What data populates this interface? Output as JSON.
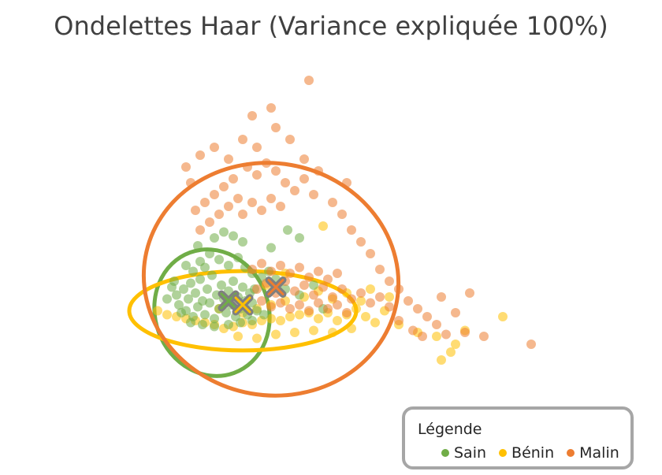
{
  "chart_data": {
    "type": "scatter",
    "title": "Ondelettes Haar (Variance expliquée 100%)",
    "axes_visible": false,
    "grid": false,
    "legend_placement": "bottom-right",
    "legend_title": "Légende",
    "series": [
      {
        "name": "Sain",
        "color": "#70ad47",
        "centroid": {
          "x": 0.0,
          "y": 0.0
        },
        "ellipse": {
          "cx": -0.35,
          "cy": -0.3,
          "rx": 1.2,
          "ry": 1.05,
          "angle": -20
        },
        "points": [
          [
            -1.2,
            0.35
          ],
          [
            -1.1,
            0.15
          ],
          [
            -1.05,
            -0.1
          ],
          [
            -0.95,
            0.3
          ],
          [
            -0.9,
            -0.25
          ],
          [
            -0.85,
            0.05
          ],
          [
            -0.8,
            0.45
          ],
          [
            -0.75,
            -0.4
          ],
          [
            -0.7,
            0.2
          ],
          [
            -0.65,
            -0.15
          ],
          [
            -0.6,
            0.55
          ],
          [
            -0.55,
            0.0
          ],
          [
            -0.5,
            -0.35
          ],
          [
            -0.45,
            0.3
          ],
          [
            -0.4,
            -0.05
          ],
          [
            -0.35,
            0.65
          ],
          [
            -0.3,
            -0.45
          ],
          [
            -0.25,
            0.15
          ],
          [
            -0.2,
            -0.2
          ],
          [
            -0.15,
            0.4
          ],
          [
            -0.1,
            0.05
          ],
          [
            -0.05,
            -0.3
          ],
          [
            0.0,
            0.25
          ],
          [
            0.05,
            -0.1
          ],
          [
            0.1,
            0.5
          ],
          [
            0.15,
            -0.4
          ],
          [
            0.2,
            0.1
          ],
          [
            0.25,
            -0.2
          ],
          [
            0.3,
            0.35
          ],
          [
            0.35,
            0.0
          ],
          [
            0.4,
            -0.35
          ],
          [
            0.45,
            0.2
          ],
          [
            0.5,
            -0.05
          ],
          [
            0.55,
            0.3
          ],
          [
            0.6,
            -0.25
          ],
          [
            -0.9,
            0.9
          ],
          [
            -0.6,
            1.0
          ],
          [
            -0.4,
            1.2
          ],
          [
            -0.2,
            1.05
          ],
          [
            0.0,
            0.9
          ],
          [
            0.2,
            1.1
          ],
          [
            0.35,
            0.85
          ],
          [
            -0.75,
            0.75
          ],
          [
            -0.5,
            0.85
          ],
          [
            0.5,
            0.7
          ],
          [
            0.7,
            0.6
          ],
          [
            0.85,
            0.75
          ],
          [
            1.0,
            0.55
          ],
          [
            -0.3,
            1.6
          ],
          [
            -0.1,
            1.75
          ],
          [
            0.1,
            1.65
          ],
          [
            0.3,
            1.5
          ],
          [
            1.25,
            1.8
          ],
          [
            1.5,
            1.6
          ],
          [
            0.9,
            1.35
          ],
          [
            -1.0,
            -0.3
          ],
          [
            -0.8,
            -0.55
          ],
          [
            -0.55,
            -0.6
          ],
          [
            -0.3,
            -0.65
          ],
          [
            0.0,
            -0.6
          ],
          [
            0.25,
            -0.55
          ],
          [
            0.5,
            -0.5
          ],
          [
            -1.3,
            0.05
          ],
          [
            -1.15,
            0.5
          ],
          [
            0.75,
            -0.35
          ],
          [
            1.2,
            0.3
          ],
          [
            1.5,
            0.15
          ],
          [
            1.8,
            0.4
          ],
          [
            2.0,
            -0.2
          ],
          [
            -0.65,
            1.4
          ]
        ]
      },
      {
        "name": "Bénin",
        "color": "#ffc000",
        "centroid": {
          "x": 0.3,
          "y": -0.1
        },
        "ellipse": {
          "cx": 0.3,
          "cy": -0.25,
          "rx": 2.4,
          "ry": 0.65,
          "angle": 0
        },
        "points": [
          [
            -1.5,
            -0.25
          ],
          [
            -1.3,
            -0.35
          ],
          [
            -1.1,
            -0.4
          ],
          [
            -0.9,
            -0.45
          ],
          [
            -0.7,
            -0.5
          ],
          [
            -0.5,
            -0.55
          ],
          [
            -0.3,
            -0.6
          ],
          [
            -0.1,
            -0.7
          ],
          [
            0.1,
            -0.65
          ],
          [
            0.3,
            -0.55
          ],
          [
            0.5,
            -0.6
          ],
          [
            0.7,
            -0.5
          ],
          [
            0.9,
            -0.45
          ],
          [
            1.1,
            -0.5
          ],
          [
            1.3,
            -0.4
          ],
          [
            1.5,
            -0.35
          ],
          [
            1.7,
            -0.3
          ],
          [
            1.9,
            -0.45
          ],
          [
            2.1,
            -0.3
          ],
          [
            2.3,
            -0.5
          ],
          [
            2.5,
            -0.35
          ],
          [
            2.7,
            -0.2
          ],
          [
            2.9,
            -0.4
          ],
          [
            3.1,
            -0.55
          ],
          [
            3.3,
            -0.25
          ],
          [
            1.6,
            0.1
          ],
          [
            1.9,
            0.25
          ],
          [
            2.2,
            0.05
          ],
          [
            2.5,
            0.2
          ],
          [
            2.8,
            0.0
          ],
          [
            0.2,
            -0.9
          ],
          [
            0.6,
            -0.95
          ],
          [
            1.0,
            -0.85
          ],
          [
            1.4,
            -0.8
          ],
          [
            1.8,
            -0.75
          ],
          [
            2.2,
            -0.8
          ],
          [
            2.6,
            -0.7
          ],
          [
            3.6,
            -0.6
          ],
          [
            4.0,
            -0.8
          ],
          [
            4.4,
            -0.9
          ],
          [
            4.8,
            -1.1
          ],
          [
            4.5,
            -1.5
          ],
          [
            4.7,
            -1.3
          ],
          [
            5.8,
            -0.4
          ],
          [
            5.0,
            -0.75
          ],
          [
            0.3,
            -0.3
          ],
          [
            0.6,
            -0.2
          ],
          [
            0.9,
            -0.1
          ],
          [
            1.2,
            0.0
          ],
          [
            3.4,
            0.1
          ],
          [
            3.0,
            0.3
          ],
          [
            2.0,
            1.9
          ],
          [
            1.2,
            0.7
          ],
          [
            0.8,
            0.4
          ],
          [
            -0.2,
            -0.2
          ]
        ]
      },
      {
        "name": "Malin",
        "color": "#ed7d31",
        "centroid": {
          "x": 1.0,
          "y": 0.35
        },
        "ellipse": {
          "cx": 0.9,
          "cy": 0.55,
          "rx": 2.7,
          "ry": 1.9,
          "angle": 10
        },
        "points": [
          [
            0.6,
            0.3
          ],
          [
            0.8,
            0.45
          ],
          [
            1.0,
            0.2
          ],
          [
            1.2,
            0.5
          ],
          [
            1.4,
            0.25
          ],
          [
            1.6,
            0.4
          ],
          [
            1.8,
            0.15
          ],
          [
            2.0,
            0.35
          ],
          [
            2.2,
            0.1
          ],
          [
            2.4,
            0.3
          ],
          [
            2.6,
            0.05
          ],
          [
            2.8,
            0.2
          ],
          [
            3.0,
            -0.05
          ],
          [
            3.2,
            0.1
          ],
          [
            3.4,
            -0.15
          ],
          [
            0.7,
            0.0
          ],
          [
            0.9,
            -0.15
          ],
          [
            1.1,
            -0.05
          ],
          [
            1.3,
            -0.2
          ],
          [
            1.5,
            -0.1
          ],
          [
            1.7,
            -0.25
          ],
          [
            1.9,
            -0.05
          ],
          [
            2.1,
            -0.2
          ],
          [
            2.3,
            -0.1
          ],
          [
            2.5,
            -0.3
          ],
          [
            0.5,
            0.8
          ],
          [
            0.7,
            0.95
          ],
          [
            0.9,
            0.75
          ],
          [
            1.1,
            0.9
          ],
          [
            1.3,
            0.7
          ],
          [
            1.5,
            0.85
          ],
          [
            1.7,
            0.6
          ],
          [
            1.9,
            0.75
          ],
          [
            2.1,
            0.55
          ],
          [
            2.3,
            0.7
          ],
          [
            -0.6,
            1.8
          ],
          [
            -0.4,
            2.0
          ],
          [
            -0.2,
            2.2
          ],
          [
            0.0,
            2.4
          ],
          [
            0.2,
            2.6
          ],
          [
            -0.5,
            2.5
          ],
          [
            -0.3,
            2.7
          ],
          [
            -0.1,
            2.9
          ],
          [
            0.1,
            3.1
          ],
          [
            -0.7,
            2.3
          ],
          [
            0.3,
            2.2
          ],
          [
            0.5,
            2.5
          ],
          [
            0.7,
            2.3
          ],
          [
            0.9,
            2.6
          ],
          [
            1.1,
            2.4
          ],
          [
            0.4,
            3.4
          ],
          [
            0.6,
            3.2
          ],
          [
            0.8,
            3.5
          ],
          [
            1.0,
            3.3
          ],
          [
            1.2,
            3.0
          ],
          [
            1.4,
            2.8
          ],
          [
            1.6,
            3.1
          ],
          [
            1.8,
            2.7
          ],
          [
            0.0,
            3.6
          ],
          [
            0.3,
            4.1
          ],
          [
            1.0,
            4.4
          ],
          [
            1.3,
            4.1
          ],
          [
            0.6,
            3.9
          ],
          [
            1.6,
            3.6
          ],
          [
            1.9,
            3.3
          ],
          [
            2.2,
            2.5
          ],
          [
            2.4,
            2.2
          ],
          [
            2.6,
            1.8
          ],
          [
            2.8,
            1.5
          ],
          [
            3.0,
            1.2
          ],
          [
            -0.8,
            3.0
          ],
          [
            -0.9,
            3.4
          ],
          [
            -0.6,
            3.7
          ],
          [
            -0.3,
            3.9
          ],
          [
            2.5,
            3.0
          ],
          [
            3.2,
            0.8
          ],
          [
            3.4,
            0.5
          ],
          [
            3.6,
            0.3
          ],
          [
            3.8,
            0.0
          ],
          [
            4.0,
            -0.2
          ],
          [
            4.2,
            -0.4
          ],
          [
            4.4,
            -0.6
          ],
          [
            3.6,
            -0.5
          ],
          [
            3.9,
            -0.75
          ],
          [
            4.6,
            -0.85
          ],
          [
            4.1,
            -0.9
          ],
          [
            5.0,
            -0.8
          ],
          [
            5.4,
            -0.9
          ],
          [
            6.4,
            -1.1
          ],
          [
            5.1,
            0.2
          ],
          [
            4.5,
            0.1
          ],
          [
            4.8,
            -0.3
          ],
          [
            1.7,
            5.6
          ],
          [
            0.9,
            4.9
          ],
          [
            0.5,
            4.7
          ]
        ]
      }
    ]
  }
}
